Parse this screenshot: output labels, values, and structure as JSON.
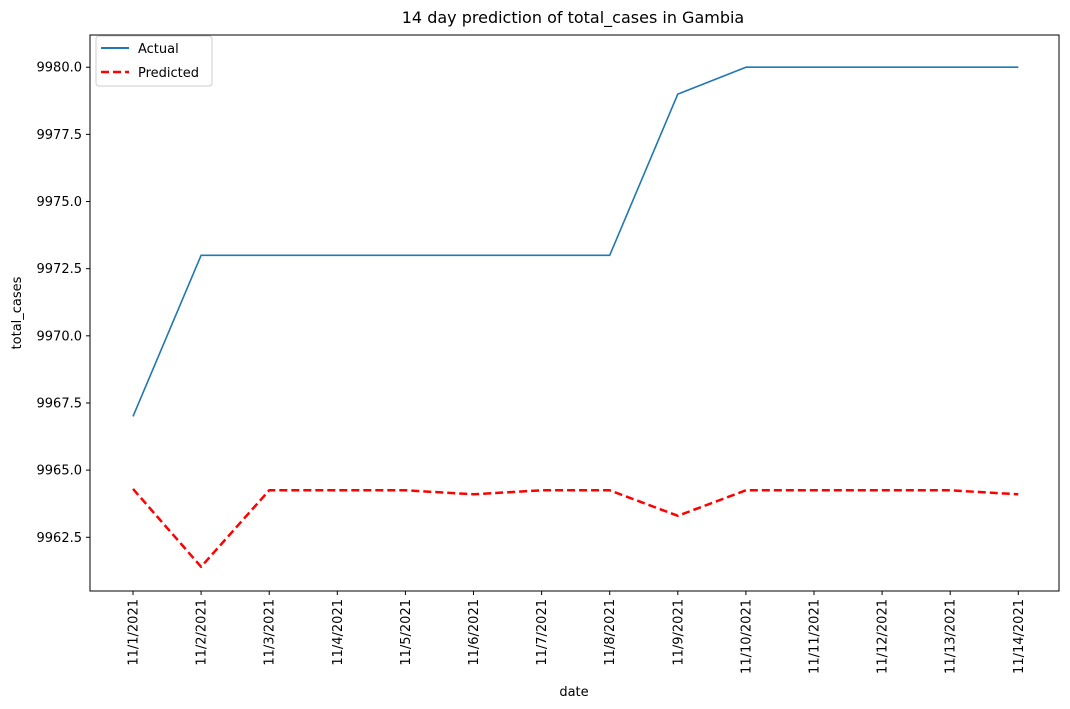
{
  "chart_data": {
    "type": "line",
    "title": "14 day prediction of total_cases in Gambia",
    "xlabel": "date",
    "ylabel": "total_cases",
    "categories": [
      "11/1/2021",
      "11/2/2021",
      "11/3/2021",
      "11/4/2021",
      "11/5/2021",
      "11/6/2021",
      "11/7/2021",
      "11/8/2021",
      "11/9/2021",
      "11/10/2021",
      "11/11/2021",
      "11/12/2021",
      "11/13/2021",
      "11/14/2021"
    ],
    "yticks": [
      "9962.5",
      "9965.0",
      "9967.5",
      "9970.0",
      "9972.5",
      "9975.0",
      "9977.5",
      "9980.0"
    ],
    "ylim": [
      9960.5,
      9981.2
    ],
    "grid": false,
    "legend_position": "top-left",
    "series": [
      {
        "name": "Actual",
        "color": "#1f77b4",
        "style": "solid",
        "values": [
          9967,
          9973,
          9973,
          9973,
          9973,
          9973,
          9973,
          9973,
          9979,
          9980,
          9980,
          9980,
          9980,
          9980
        ]
      },
      {
        "name": "Predicted",
        "color": "#ff0000",
        "style": "dashed",
        "values": [
          9964.3,
          9961.4,
          9964.25,
          9964.25,
          9964.25,
          9964.1,
          9964.25,
          9964.25,
          9963.3,
          9964.25,
          9964.25,
          9964.25,
          9964.25,
          9964.1
        ]
      }
    ]
  }
}
